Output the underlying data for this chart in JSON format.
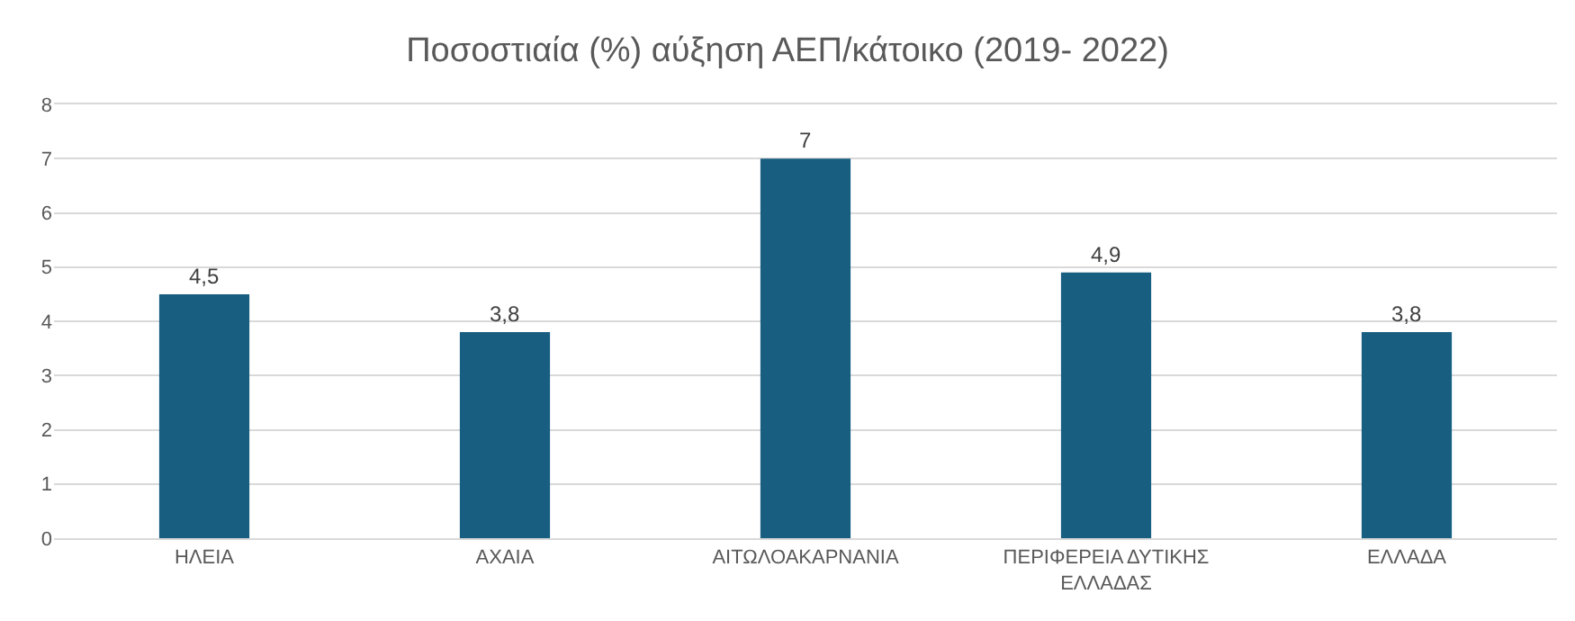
{
  "chart_data": {
    "type": "bar",
    "title": "Ποσοστιαία (%) αύξηση ΑΕΠ/κάτοικο (2019- 2022)",
    "categories": [
      "ΗΛΕΙΑ",
      "ΑΧΑΙΑ",
      "ΑΙΤΩΛΟΑΚΑΡΝΑΝΙΑ",
      "ΠΕΡΙΦΕΡΕΙΑ ΔΥΤΙΚΗΣ\nΕΛΛΑΔΑΣ",
      "ΕΛΛΑΔΑ"
    ],
    "values": [
      4.5,
      3.8,
      7,
      4.9,
      3.8
    ],
    "value_labels": [
      "4,5",
      "3,8",
      "7",
      "4,9",
      "3,8"
    ],
    "color": "#175e80",
    "ylim": [
      0,
      8
    ],
    "yticks": [
      0,
      1,
      2,
      3,
      4,
      5,
      6,
      7,
      8
    ],
    "grid": "y"
  }
}
